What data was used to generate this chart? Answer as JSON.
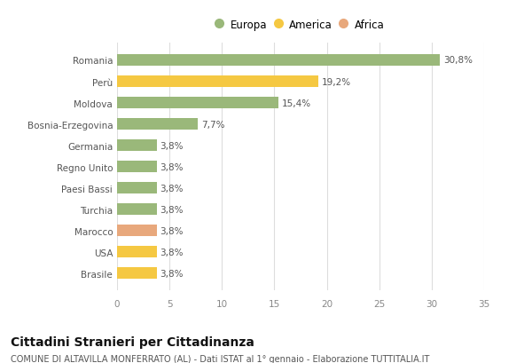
{
  "title": "Cittadini Stranieri per Cittadinanza",
  "subtitle": "COMUNE DI ALTAVILLA MONFERRATO (AL) - Dati ISTAT al 1° gennaio - Elaborazione TUTTITALIA.IT",
  "categories": [
    "Brasile",
    "USA",
    "Marocco",
    "Turchia",
    "Paesi Bassi",
    "Regno Unito",
    "Germania",
    "Bosnia-Erzegovina",
    "Moldova",
    "Perù",
    "Romania"
  ],
  "values": [
    3.8,
    3.8,
    3.8,
    3.8,
    3.8,
    3.8,
    3.8,
    7.7,
    15.4,
    19.2,
    30.8
  ],
  "colors": [
    "#f5c842",
    "#f5c842",
    "#e8a87c",
    "#9ab87a",
    "#9ab87a",
    "#9ab87a",
    "#9ab87a",
    "#9ab87a",
    "#9ab87a",
    "#f5c842",
    "#9ab87a"
  ],
  "labels": [
    "3,8%",
    "3,8%",
    "3,8%",
    "3,8%",
    "3,8%",
    "3,8%",
    "3,8%",
    "7,7%",
    "15,4%",
    "19,2%",
    "30,8%"
  ],
  "legend": [
    {
      "label": "Europa",
      "color": "#9ab87a"
    },
    {
      "label": "America",
      "color": "#f5c842"
    },
    {
      "label": "Africa",
      "color": "#e8a87c"
    }
  ],
  "xlim": [
    0,
    35
  ],
  "xticks": [
    0,
    5,
    10,
    15,
    20,
    25,
    30,
    35
  ],
  "background_color": "#ffffff",
  "grid_color": "#dddddd",
  "bar_height": 0.55,
  "title_fontsize": 10,
  "subtitle_fontsize": 7,
  "label_fontsize": 7.5,
  "tick_fontsize": 7.5,
  "legend_fontsize": 8.5
}
